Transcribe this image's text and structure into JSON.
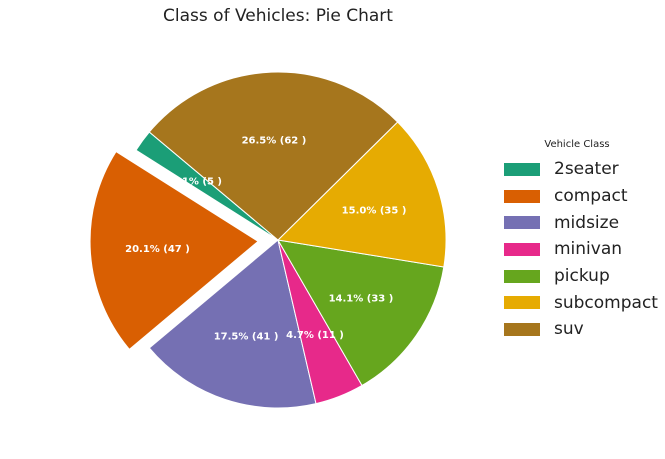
{
  "chart_data": {
    "type": "pie",
    "title": "Class of Vehicles: Pie Chart",
    "legend_title": "Vehicle Class",
    "legend_position": "right",
    "slices": [
      {
        "label": "2seater",
        "value": 5,
        "pct_label": "2.1% (5 )",
        "color": "#1b9e77",
        "explode": false
      },
      {
        "label": "compact",
        "value": 47,
        "pct_label": "20.1% (47 )",
        "color": "#d95f02",
        "explode": true
      },
      {
        "label": "midsize",
        "value": 41,
        "pct_label": "17.5% (41 )",
        "color": "#7570b3",
        "explode": false
      },
      {
        "label": "minivan",
        "value": 11,
        "pct_label": "4.7% (11 )",
        "color": "#e7298a",
        "explode": false
      },
      {
        "label": "pickup",
        "value": 33,
        "pct_label": "14.1% (33 )",
        "color": "#66a61e",
        "explode": false
      },
      {
        "label": "subcompact",
        "value": 35,
        "pct_label": "15.0% (35 )",
        "color": "#e6ab02",
        "explode": false
      },
      {
        "label": "suv",
        "value": 62,
        "pct_label": "26.5% (62 )",
        "color": "#a6761d",
        "explode": false
      }
    ],
    "start_angle_deg": 140
  }
}
